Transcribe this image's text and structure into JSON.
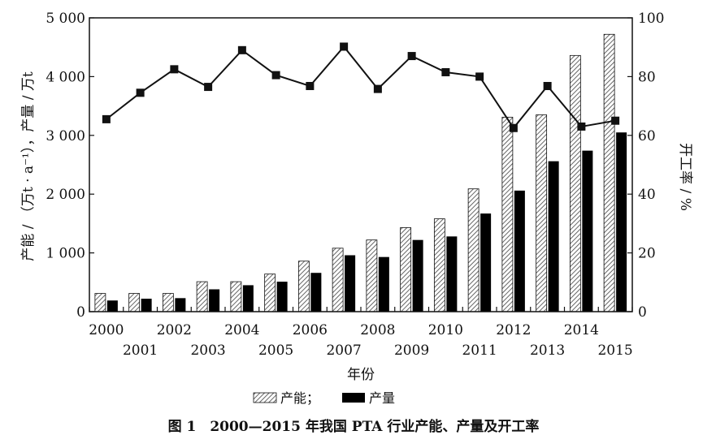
{
  "chart_data": {
    "type": "bar",
    "categories": [
      "2000",
      "2001",
      "2002",
      "2003",
      "2004",
      "2005",
      "2006",
      "2007",
      "2008",
      "2009",
      "2010",
      "2011",
      "2012",
      "2013",
      "2014",
      "2015"
    ],
    "series": [
      {
        "name": "产能",
        "kind": "bar",
        "axis": "left",
        "pattern": "hatched",
        "values": [
          310,
          310,
          310,
          510,
          510,
          640,
          860,
          1080,
          1220,
          1430,
          1580,
          2090,
          3310,
          3350,
          4360,
          4720
        ]
      },
      {
        "name": "产量",
        "kind": "bar",
        "axis": "left",
        "pattern": "solid-black",
        "values": [
          190,
          220,
          230,
          380,
          450,
          510,
          660,
          960,
          930,
          1220,
          1280,
          1670,
          2060,
          2560,
          2740,
          3050
        ]
      },
      {
        "name": "开工率",
        "kind": "line",
        "axis": "right",
        "marker": "square",
        "values": [
          65.5,
          74.5,
          82.5,
          76.5,
          89,
          80.5,
          76.8,
          90.2,
          75.8,
          87,
          81.5,
          80,
          62.5,
          76.8,
          63,
          65
        ]
      }
    ],
    "ylabel": "产能 / （万t · a⁻¹），产量 / 万t",
    "y2label": "开工率 / %",
    "xlabel": "年份",
    "ylim": [
      0,
      5000
    ],
    "y2lim": [
      0,
      100
    ],
    "yticks": [
      "0",
      "1 000",
      "2 000",
      "3 000",
      "4 000",
      "5 000"
    ],
    "y2ticks": [
      "0",
      "20",
      "40",
      "60",
      "80",
      "100"
    ],
    "legend": {
      "placement": "bottom",
      "items": [
        "产能；",
        "产量"
      ]
    },
    "caption": "图 1　2000—2015 年我国 PTA 行业产能、产量及开工率",
    "grid": false
  }
}
